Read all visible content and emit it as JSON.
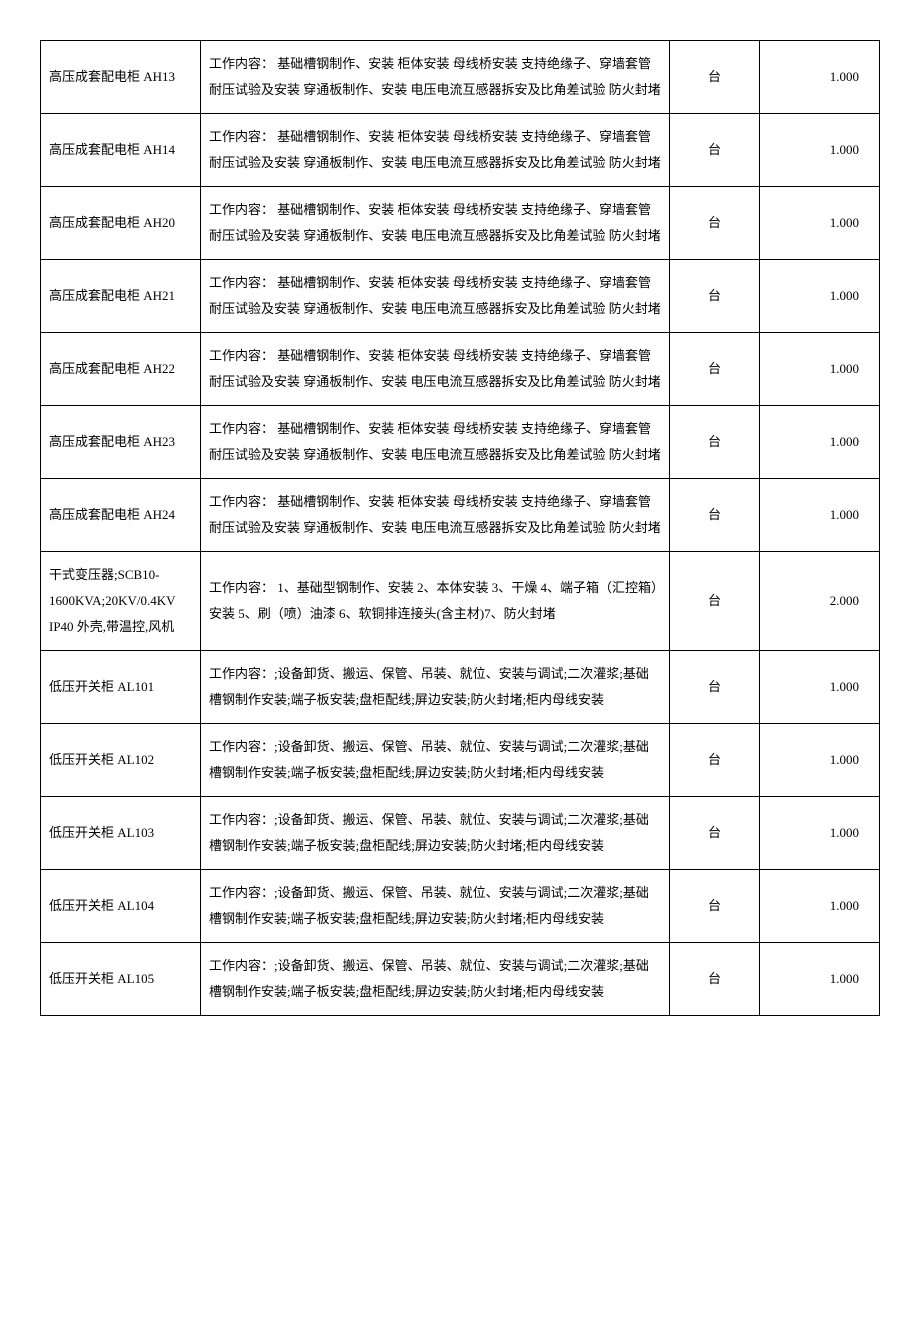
{
  "table": {
    "columns": [
      {
        "key": "name",
        "class": "col-name"
      },
      {
        "key": "desc",
        "class": "col-desc"
      },
      {
        "key": "unit",
        "class": "col-unit"
      },
      {
        "key": "qty",
        "class": "col-qty"
      }
    ],
    "rows": [
      {
        "name": "高压成套配电柜 AH13",
        "desc": "工作内容：  基础槽钢制作、安装 柜体安装 母线桥安装 支持绝缘子、穿墙套管耐压试验及安装 穿通板制作、安装 电压电流互感器拆安及比角差试验 防火封堵",
        "unit": "台",
        "qty": "1.000"
      },
      {
        "name": "高压成套配电柜 AH14",
        "desc": "工作内容：  基础槽钢制作、安装 柜体安装 母线桥安装 支持绝缘子、穿墙套管耐压试验及安装 穿通板制作、安装 电压电流互感器拆安及比角差试验 防火封堵",
        "unit": "台",
        "qty": "1.000"
      },
      {
        "name": "高压成套配电柜 AH20",
        "desc": "工作内容：  基础槽钢制作、安装 柜体安装 母线桥安装 支持绝缘子、穿墙套管耐压试验及安装 穿通板制作、安装 电压电流互感器拆安及比角差试验 防火封堵",
        "unit": "台",
        "qty": "1.000"
      },
      {
        "name": "高压成套配电柜 AH21",
        "desc": "工作内容：  基础槽钢制作、安装 柜体安装 母线桥安装 支持绝缘子、穿墙套管耐压试验及安装 穿通板制作、安装 电压电流互感器拆安及比角差试验 防火封堵",
        "unit": "台",
        "qty": "1.000"
      },
      {
        "name": "高压成套配电柜 AH22",
        "desc": "工作内容：  基础槽钢制作、安装 柜体安装 母线桥安装 支持绝缘子、穿墙套管耐压试验及安装 穿通板制作、安装 电压电流互感器拆安及比角差试验 防火封堵",
        "unit": "台",
        "qty": "1.000"
      },
      {
        "name": "高压成套配电柜 AH23",
        "desc": "工作内容：  基础槽钢制作、安装 柜体安装 母线桥安装 支持绝缘子、穿墙套管耐压试验及安装 穿通板制作、安装 电压电流互感器拆安及比角差试验 防火封堵",
        "unit": "台",
        "qty": "1.000"
      },
      {
        "name": "高压成套配电柜 AH24",
        "desc": "工作内容：  基础槽钢制作、安装 柜体安装 母线桥安装 支持绝缘子、穿墙套管耐压试验及安装 穿通板制作、安装 电压电流互感器拆安及比角差试验 防火封堵",
        "unit": "台",
        "qty": "1.000"
      },
      {
        "name": "干式变压器;SCB10-1600KVA;20KV/0.4KV IP40 外壳,带温控,风机",
        "desc": "工作内容： 1、基础型钢制作、安装 2、本体安装 3、干燥 4、端子箱（汇控箱）安装 5、刷（喷）油漆 6、软铜排连接头(含主材)7、防火封堵",
        "unit": "台",
        "qty": "2.000"
      },
      {
        "name": "低压开关柜 AL101",
        "desc": "工作内容：;设备卸货、搬运、保管、吊装、就位、安装与调试;二次灌浆;基础槽钢制作安装;端子板安装;盘柜配线;屏边安装;防火封堵;柜内母线安装",
        "unit": "台",
        "qty": "1.000"
      },
      {
        "name": "低压开关柜 AL102",
        "desc": "工作内容：;设备卸货、搬运、保管、吊装、就位、安装与调试;二次灌浆;基础槽钢制作安装;端子板安装;盘柜配线;屏边安装;防火封堵;柜内母线安装",
        "unit": "台",
        "qty": "1.000"
      },
      {
        "name": "低压开关柜 AL103",
        "desc": "工作内容：;设备卸货、搬运、保管、吊装、就位、安装与调试;二次灌浆;基础槽钢制作安装;端子板安装;盘柜配线;屏边安装;防火封堵;柜内母线安装",
        "unit": "台",
        "qty": "1.000"
      },
      {
        "name": "低压开关柜 AL104",
        "desc": "工作内容：;设备卸货、搬运、保管、吊装、就位、安装与调试;二次灌浆;基础槽钢制作安装;端子板安装;盘柜配线;屏边安装;防火封堵;柜内母线安装",
        "unit": "台",
        "qty": "1.000"
      },
      {
        "name": "低压开关柜 AL105",
        "desc": "工作内容：;设备卸货、搬运、保管、吊装、就位、安装与调试;二次灌浆;基础槽钢制作安装;端子板安装;盘柜配线;屏边安装;防火封堵;柜内母线安装",
        "unit": "台",
        "qty": "1.000"
      }
    ]
  }
}
